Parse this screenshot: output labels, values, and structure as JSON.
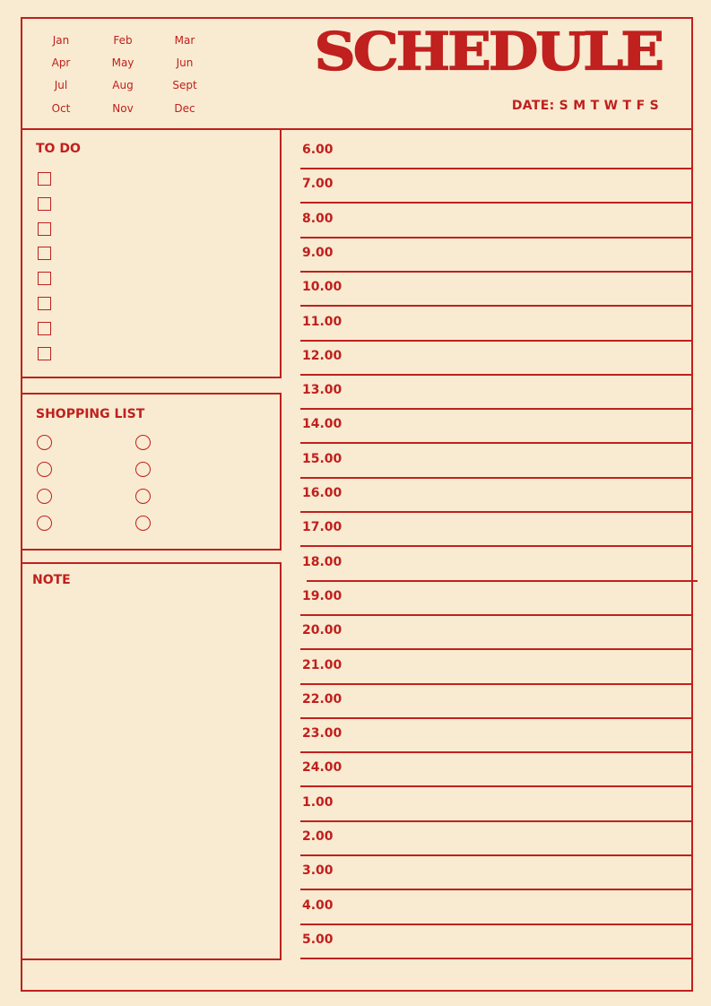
{
  "colors": {
    "background": "#f8ebd1",
    "accent": "#c0201e"
  },
  "header": {
    "title": "SCHEDULE",
    "date_label": "DATE: S M T W T F S",
    "months": [
      "Jan",
      "Feb",
      "Mar",
      "Apr",
      "May",
      "Jun",
      "Jul",
      "Aug",
      "Sept",
      "Oct",
      "Nov",
      "Dec"
    ]
  },
  "todo": {
    "heading": "TO DO",
    "checkbox_count": 8
  },
  "shopping": {
    "heading": "SHOPPING LIST",
    "circle_count": 8
  },
  "note": {
    "heading": "NOTE"
  },
  "schedule": {
    "times": [
      "6.00",
      "7.00",
      "8.00",
      "9.00",
      "10.00",
      "11.00",
      "12.00",
      "13.00",
      "14.00",
      "15.00",
      "16.00",
      "17.00",
      "18.00",
      "19.00",
      "20.00",
      "21.00",
      "22.00",
      "23.00",
      "24.00",
      "1.00",
      "2.00",
      "3.00",
      "4.00",
      "5.00"
    ]
  }
}
